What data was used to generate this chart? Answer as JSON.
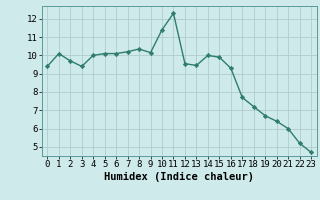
{
  "x": [
    0,
    1,
    2,
    3,
    4,
    5,
    6,
    7,
    8,
    9,
    10,
    11,
    12,
    13,
    14,
    15,
    16,
    17,
    18,
    19,
    20,
    21,
    22,
    23
  ],
  "y": [
    9.4,
    10.1,
    9.7,
    9.4,
    10.0,
    10.1,
    10.1,
    10.2,
    10.35,
    10.15,
    11.4,
    12.3,
    9.55,
    9.45,
    10.0,
    9.9,
    9.3,
    7.7,
    7.2,
    6.7,
    6.4,
    6.0,
    5.2,
    4.7
  ],
  "line_color": "#2e7d6e",
  "marker": "D",
  "marker_size": 2.2,
  "bg_color": "#ceeaea",
  "grid_color": "#b0cccc",
  "xlabel": "Humidex (Indice chaleur)",
  "xlabel_fontsize": 7.5,
  "tick_fontsize": 6.5,
  "ylim": [
    4.5,
    12.7
  ],
  "xlim": [
    -0.5,
    23.5
  ],
  "yticks": [
    5,
    6,
    7,
    8,
    9,
    10,
    11,
    12
  ],
  "xticks": [
    0,
    1,
    2,
    3,
    4,
    5,
    6,
    7,
    8,
    9,
    10,
    11,
    12,
    13,
    14,
    15,
    16,
    17,
    18,
    19,
    20,
    21,
    22,
    23
  ],
  "linewidth": 1.0
}
